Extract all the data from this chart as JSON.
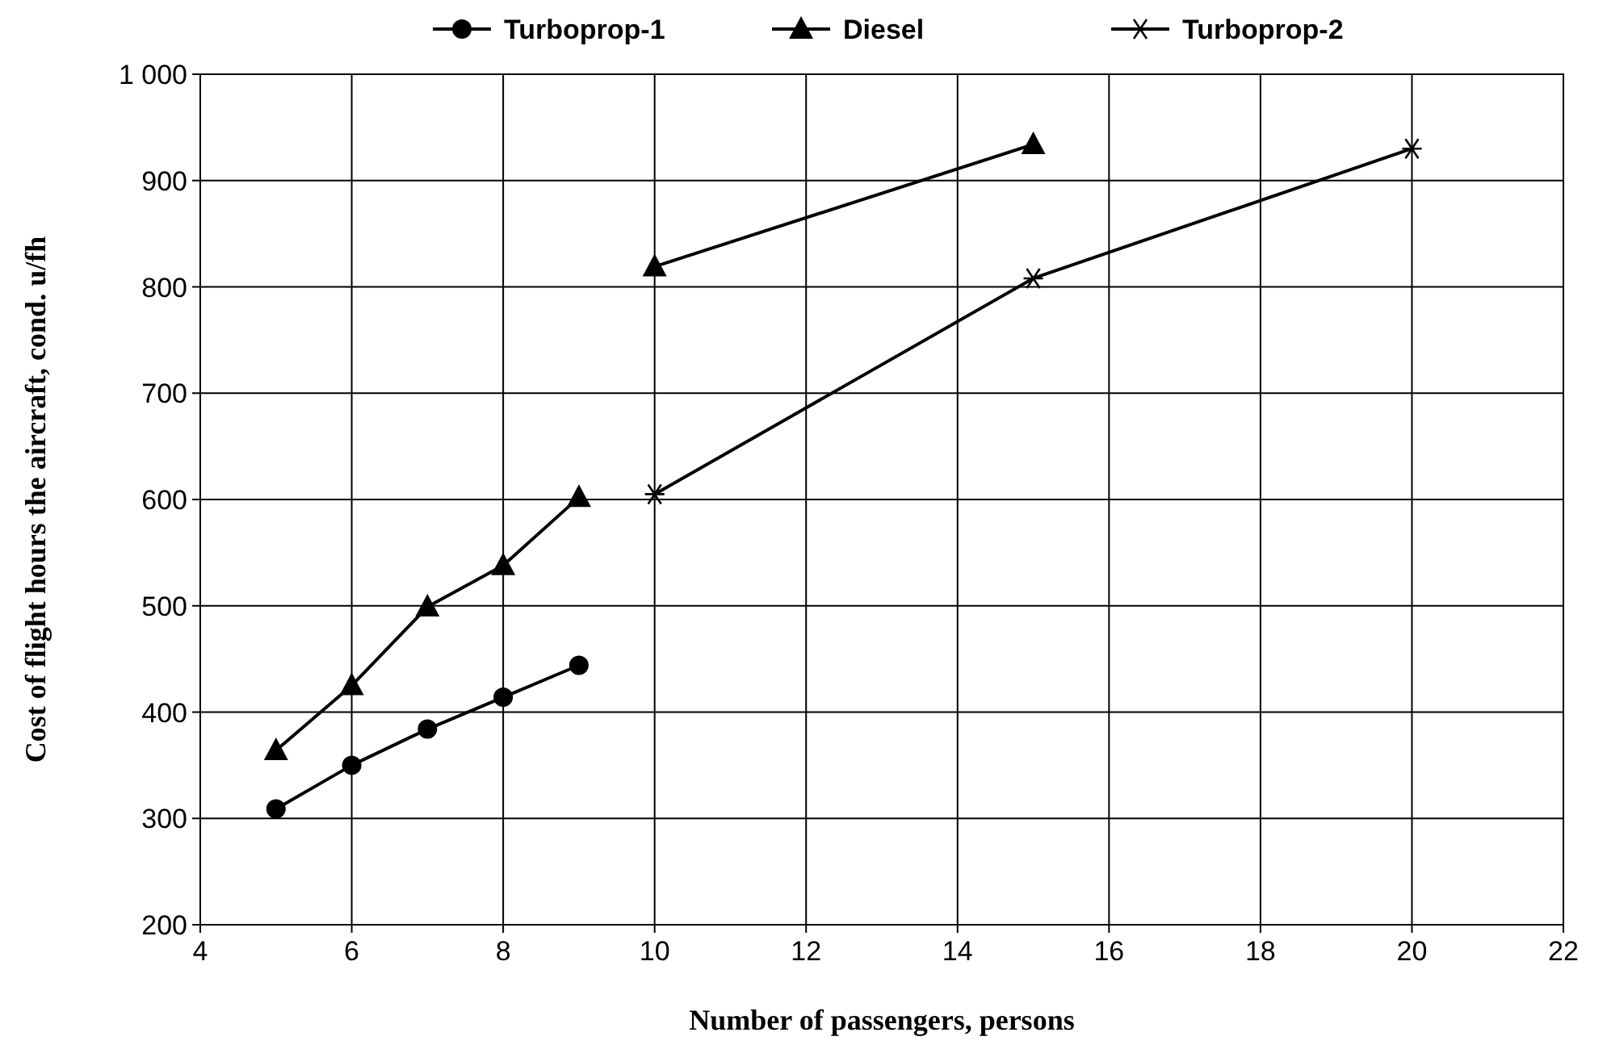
{
  "chart_data": {
    "type": "line",
    "xlabel": "Number of passengers, persons",
    "ylabel": "Cost of flight hours the aircraft, cond. u/fh",
    "xlim": [
      4,
      22
    ],
    "xticks": [
      4,
      6,
      8,
      10,
      12,
      14,
      16,
      18,
      20,
      22
    ],
    "ylim": [
      200,
      1000
    ],
    "yticks": [
      200,
      300,
      400,
      500,
      600,
      700,
      800,
      900,
      {
        "value": 1000,
        "label": "1 000"
      }
    ],
    "grid": true,
    "legend": "top",
    "series": [
      {
        "name": "Turboprop-1",
        "color": "#000000",
        "marker": "circle",
        "x": [
          5,
          6,
          7,
          8,
          9
        ],
        "values": [
          309,
          350,
          384,
          414,
          444
        ]
      },
      {
        "name": "Diesel",
        "color": "#000000",
        "marker": "triangle",
        "x": [
          5,
          6,
          7,
          8,
          9
        ],
        "values": [
          364,
          425,
          499,
          538,
          602
        ]
      },
      {
        "color": "#000000",
        "marker": "triangle",
        "x": [
          10,
          15
        ],
        "values": [
          819,
          934
        ]
      },
      {
        "name": "Turboprop-2",
        "color": "#000000",
        "marker": "cross",
        "x": [
          10,
          15,
          20
        ],
        "values": [
          605,
          808,
          930
        ]
      }
    ]
  }
}
